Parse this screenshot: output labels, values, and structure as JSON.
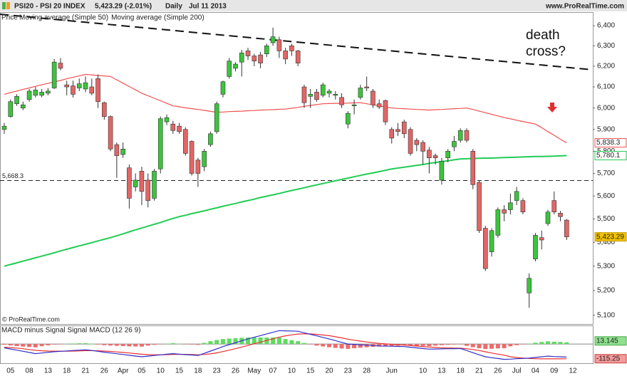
{
  "chart_data": [
    {
      "type": "candlestick",
      "title": "PSI20 - PSI 20 INDEX",
      "subtitle": "5,423.29 (-2.01%)",
      "period": "Daily",
      "date": "Jul 11 2013",
      "source": "www.ProRealTime.com",
      "footer": "© ProRealTime.com",
      "annotation": "death cross?",
      "price_label": "Price",
      "last_label": "5,423.29",
      "categories": [
        null,
        "05",
        null,
        null,
        "08",
        null,
        null,
        "13",
        null,
        null,
        "18",
        null,
        null,
        "21",
        null,
        null,
        "26",
        null,
        null,
        "Apr",
        null,
        null,
        "05",
        null,
        null,
        "10",
        null,
        null,
        "15",
        null,
        null,
        "18",
        null,
        null,
        "23",
        null,
        null,
        "26",
        null,
        null,
        "May",
        null,
        null,
        "07",
        null,
        null,
        "10",
        null,
        null,
        "15",
        null,
        null,
        "20",
        null,
        null,
        "23",
        null,
        null,
        "28",
        null,
        null,
        null,
        "Jun",
        null,
        null,
        null,
        null,
        "10",
        null,
        null,
        "13",
        null,
        null,
        "18",
        null,
        null,
        "21",
        null,
        null,
        "26",
        null,
        null,
        "Jul",
        null,
        null,
        "04",
        null,
        null,
        "09",
        null,
        null,
        "12"
      ],
      "open": [
        5900,
        5960,
        6020,
        6000,
        6040,
        6060,
        6060,
        6070,
        6095,
        6215,
        6110,
        6105,
        6095,
        6090,
        6100,
        6140,
        6025,
        5960,
        5830,
        5785,
        5725,
        5640,
        5710,
        5670,
        5590,
        5720,
        5935,
        5925,
        5915,
        5900,
        5845,
        5760,
        5730,
        5830,
        5890,
        6065,
        6150,
        6190,
        6220,
        6275,
        6250,
        6255,
        6260,
        6315,
        6330,
        6275,
        6300,
        6275,
        6100,
        6055,
        6075,
        6060,
        6070,
        6060,
        6050,
        5925,
        6010,
        6050,
        6100,
        6080,
        6020,
        6035,
        5900,
        5900,
        5935,
        5900,
        5850,
        5840,
        5805,
        5780,
        5670,
        5770,
        5820,
        5850,
        5895,
        5800,
        5660,
        5460,
        5360,
        5430,
        5540,
        5540,
        5580,
        5580,
        5190,
        5330,
        5420,
        5480,
        5580,
        5525,
        5495,
        null
      ],
      "high": [
        5930,
        6040,
        6065,
        6030,
        6090,
        6100,
        6090,
        6095,
        6235,
        6240,
        6130,
        6130,
        6140,
        6150,
        6140,
        6160,
        6030,
        5965,
        5840,
        5840,
        5740,
        5700,
        5730,
        5700,
        5720,
        5960,
        5970,
        5940,
        5930,
        5910,
        5850,
        5770,
        5810,
        5890,
        6030,
        6130,
        6240,
        6220,
        6280,
        6290,
        6260,
        6270,
        6310,
        6390,
        6345,
        6290,
        6310,
        6280,
        6110,
        6090,
        6090,
        6120,
        6090,
        6080,
        6070,
        5985,
        6040,
        6110,
        6150,
        6090,
        6040,
        6040,
        5910,
        5930,
        5945,
        5910,
        5860,
        5850,
        5820,
        5790,
        5770,
        5810,
        5870,
        5905,
        5905,
        5810,
        5670,
        5470,
        5460,
        5550,
        5560,
        5610,
        5640,
        5590,
        5270,
        5440,
        5450,
        5540,
        5620,
        5535,
        5500,
        null
      ],
      "low": [
        5880,
        5955,
        6010,
        5990,
        6030,
        6050,
        6050,
        6060,
        6090,
        6180,
        6060,
        6050,
        6080,
        6075,
        6060,
        6000,
        5945,
        5800,
        5680,
        5770,
        5545,
        5620,
        5560,
        5550,
        5580,
        5700,
        5920,
        5880,
        5880,
        5780,
        5690,
        5640,
        5710,
        5820,
        5880,
        6050,
        6140,
        6175,
        6150,
        6230,
        6200,
        6190,
        6245,
        6300,
        6240,
        6210,
        6250,
        6200,
        6000,
        6000,
        6030,
        6050,
        6050,
        6040,
        6000,
        5905,
        5970,
        6040,
        6080,
        6000,
        5995,
        5920,
        5835,
        5870,
        5860,
        5780,
        5800,
        5740,
        5700,
        5740,
        5650,
        5750,
        5800,
        5840,
        5840,
        5630,
        5440,
        5280,
        5340,
        5420,
        5490,
        5520,
        5560,
        5520,
        5130,
        5320,
        5370,
        5470,
        5520,
        5490,
        5410,
        null
      ],
      "close": [
        5915,
        6030,
        6055,
        6015,
        6080,
        6085,
        6075,
        6080,
        6220,
        6190,
        6100,
        6065,
        6115,
        6120,
        6070,
        6030,
        5960,
        5810,
        5780,
        5810,
        5590,
        5670,
        5620,
        5580,
        5710,
        5950,
        5955,
        5895,
        5890,
        5790,
        5700,
        5700,
        5800,
        5880,
        6020,
        6125,
        6225,
        6210,
        6265,
        6250,
        6225,
        6215,
        6300,
        6345,
        6275,
        6235,
        6275,
        6215,
        6025,
        6065,
        6040,
        6110,
        6080,
        6065,
        6015,
        5975,
        6015,
        6095,
        6095,
        6015,
        6005,
        5935,
        5860,
        5890,
        5880,
        5790,
        5830,
        5800,
        5770,
        5770,
        5755,
        5800,
        5845,
        5895,
        5850,
        5650,
        5450,
        5290,
        5450,
        5540,
        5525,
        5570,
        5620,
        5530,
        5250,
        5430,
        5410,
        5530,
        5530,
        5510,
        5423.29,
        null
      ],
      "up_color": "#3cc43c",
      "down_color": "#e26666",
      "series": [
        {
          "name": "Moving average (Simple 50)",
          "color": "#f05050",
          "last_label": "5,838.3",
          "values": [
            6065,
            6073,
            6080,
            6088,
            6095,
            6103,
            6110,
            6117,
            6124,
            6131,
            6139,
            6146,
            6153,
            6160,
            6158,
            6155,
            6153,
            6150,
            6134,
            6118,
            6102,
            6086,
            6070,
            6058,
            6046,
            6034,
            6022,
            6010,
            6006,
            6001,
            5997,
            5993,
            5989,
            5984,
            5980,
            5981,
            5983,
            5984,
            5985,
            5987,
            5988,
            5990,
            5991,
            5992,
            5994,
            5995,
            5999,
            6003,
            6008,
            6012,
            6016,
            6020,
            6021,
            6022,
            6022,
            6023,
            6024,
            6025,
            6020,
            6015,
            6010,
            6005,
            6000,
            5998,
            5997,
            5995,
            5993,
            5992,
            5990,
            5992,
            5993,
            5995,
            5997,
            5998,
            6000,
            5993,
            5985,
            5978,
            5970,
            5963,
            5955,
            5949,
            5943,
            5937,
            5931,
            5925,
            5908,
            5890,
            5873,
            5855,
            5838.3,
            null
          ]
        },
        {
          "name": "Moving average (Simple 200)",
          "color": "#22cc55",
          "last_label": "5,780.1",
          "values": [
            5300,
            5307,
            5314,
            5321,
            5328,
            5335,
            5342,
            5349,
            5356,
            5364,
            5371,
            5378,
            5385,
            5392,
            5399,
            5406,
            5413,
            5420,
            5428,
            5436,
            5445,
            5453,
            5461,
            5469,
            5477,
            5485,
            5494,
            5502,
            5510,
            5516,
            5523,
            5529,
            5535,
            5542,
            5548,
            5555,
            5561,
            5567,
            5574,
            5580,
            5586,
            5593,
            5599,
            5605,
            5611,
            5618,
            5624,
            5630,
            5636,
            5643,
            5649,
            5655,
            5661,
            5667,
            5673,
            5679,
            5685,
            5691,
            5697,
            5702,
            5708,
            5714,
            5720,
            5724,
            5728,
            5732,
            5736,
            5740,
            5745,
            5749,
            5753,
            5757,
            5761,
            5765,
            5766,
            5767,
            5768,
            5769,
            5769,
            5770,
            5771,
            5772,
            5773,
            5774,
            5775,
            5776,
            5776,
            5777,
            5778,
            5779,
            5780.1,
            null
          ]
        }
      ],
      "hline": {
        "value": 5668.3,
        "label": "5,668.3"
      },
      "log_scale": true,
      "ylim": [
        5065,
        6465
      ],
      "yticks": [
        {
          "value": 5100,
          "label": "5,100"
        },
        {
          "value": 5200,
          "label": "5,200"
        },
        {
          "value": 5300,
          "label": "5,300"
        },
        {
          "value": 5400,
          "label": "5,400"
        },
        {
          "value": 5500,
          "label": "5,500"
        },
        {
          "value": 5600,
          "label": "5,600"
        },
        {
          "value": 5700,
          "label": "5,700"
        },
        {
          "value": 5800,
          "label": "5,800"
        },
        {
          "value": 5900,
          "label": "5,900"
        },
        {
          "value": 6000,
          "label": "6,000"
        },
        {
          "value": 6100,
          "label": "6,100"
        },
        {
          "value": 6200,
          "label": "6,200"
        },
        {
          "value": 6300,
          "label": "6,300"
        },
        {
          "value": 6400,
          "label": "6,400"
        }
      ]
    },
    {
      "type": "macd",
      "ylim": [
        -150,
        140
      ],
      "series": [
        {
          "name": "MACD minus Signal",
          "color": "#3a4fd0",
          "up_color": "#5ddc5d",
          "down_color": "#ee6a6a",
          "values": [
            -5,
            -11,
            -16,
            -20,
            -23,
            -26,
            -17,
            -10,
            -4,
            -1,
            2,
            4,
            6,
            7,
            1,
            -4,
            -9,
            -12,
            -14,
            -16,
            -18,
            -19,
            -20,
            -12,
            -6,
            -1,
            3,
            6,
            2,
            -2,
            -4,
            -6,
            9,
            22,
            31,
            39,
            43,
            46,
            49,
            51,
            51,
            51,
            51,
            51,
            51,
            39,
            30,
            22,
            8,
            -3,
            -12,
            -19,
            -25,
            -30,
            -35,
            -38,
            -33,
            -29,
            -25,
            -22,
            -20,
            -17,
            -14,
            -13,
            -11,
            -13,
            -14,
            -15,
            -16,
            -12,
            -9,
            -6,
            -4,
            -2,
            -14,
            -25,
            -33,
            -39,
            -37,
            -34,
            -33,
            -18,
            -9,
            -3,
            3,
            10,
            16,
            21,
            18,
            16,
            13.145,
            null
          ]
        },
        {
          "name": "Signal",
          "color": "#e83030",
          "values": [
            -25,
            -28,
            -32,
            -37,
            -43,
            -49,
            -53,
            -55,
            -56,
            -56,
            -56,
            -55,
            -54,
            -52,
            -52,
            -53,
            -55,
            -58,
            -62,
            -66,
            -70,
            -75,
            -80,
            -83,
            -84,
            -84,
            -83,
            -81,
            -81,
            -81,
            -82,
            -84,
            -82,
            -77,
            -69,
            -59,
            -48,
            -36,
            -24,
            -11,
            2,
            15,
            28,
            41,
            54,
            64,
            72,
            78,
            80,
            79,
            76,
            71,
            65,
            57,
            48,
            38,
            30,
            23,
            16,
            10,
            5,
            1,
            -3,
            -6,
            -9,
            -12,
            -16,
            -20,
            -24,
            -27,
            -29,
            -31,
            -32,
            -33,
            -37,
            -43,
            -51,
            -61,
            -70,
            -79,
            -87,
            -100,
            -106,
            -110,
            -113,
            -115,
            -116,
            -116,
            -116,
            -116,
            -115.25,
            null
          ]
        },
        {
          "name": "MACD (12 26 9)",
          "color": "#3030c8",
          "values": [
            -30,
            -39,
            -48,
            -57,
            -66,
            -75,
            -70,
            -65,
            -60,
            -57,
            -54,
            -51,
            -48,
            -45,
            -51,
            -57,
            -64,
            -70,
            -76,
            -82,
            -88,
            -94,
            -100,
            -95,
            -90,
            -85,
            -80,
            -75,
            -79,
            -83,
            -86,
            -90,
            -73,
            -55,
            -38,
            -20,
            -5,
            10,
            25,
            40,
            53,
            66,
            79,
            92,
            105,
            103,
            102,
            100,
            88,
            76,
            64,
            52,
            40,
            27,
            13,
            0,
            -3,
            -6,
            -9,
            -12,
            -15,
            -16,
            -17,
            -19,
            -20,
            -25,
            -30,
            -35,
            -40,
            -39,
            -38,
            -37,
            -36,
            -35,
            -51,
            -68,
            -84,
            -100,
            -107,
            -113,
            -120,
            -118,
            -115,
            -113,
            -110,
            -105,
            -100,
            -95,
            -98,
            -100,
            -102.105,
            null
          ]
        }
      ]
    }
  ]
}
